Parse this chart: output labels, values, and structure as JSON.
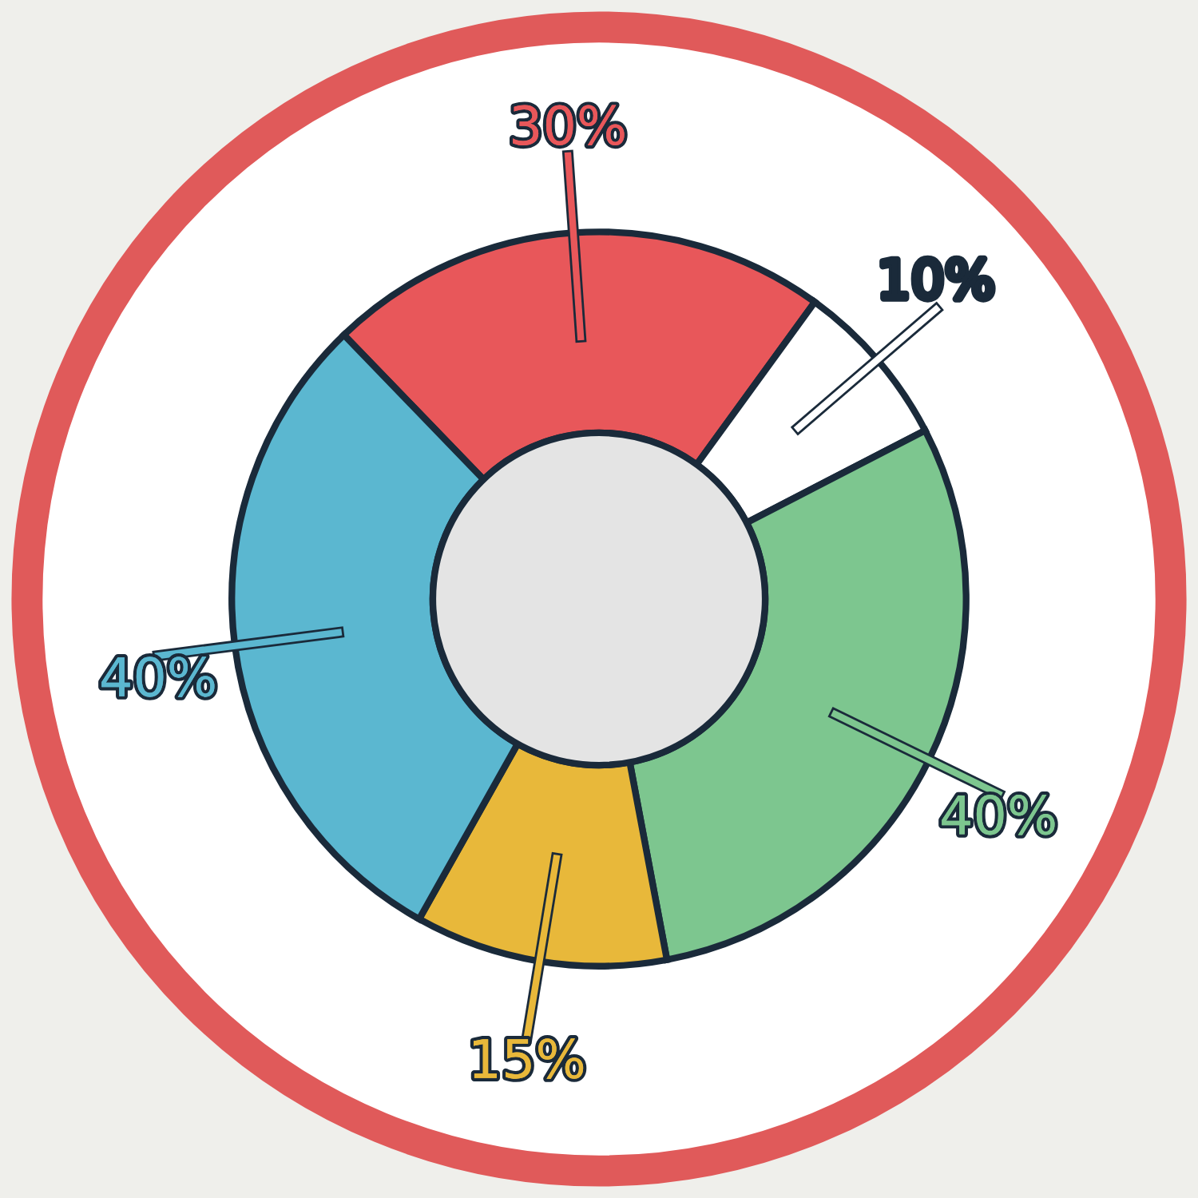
{
  "chart_data": {
    "type": "donut",
    "categories": [
      null,
      null,
      null,
      null,
      null
    ],
    "values": [
      30,
      10,
      40,
      15,
      40
    ],
    "colors": [
      "#e8575a",
      "#ffffff",
      "#7dc68f",
      "#e8b83a",
      "#5bb7d0"
    ],
    "value_labels": [
      "30%",
      "10%",
      "40%",
      "15%",
      "40%"
    ]
  }
}
